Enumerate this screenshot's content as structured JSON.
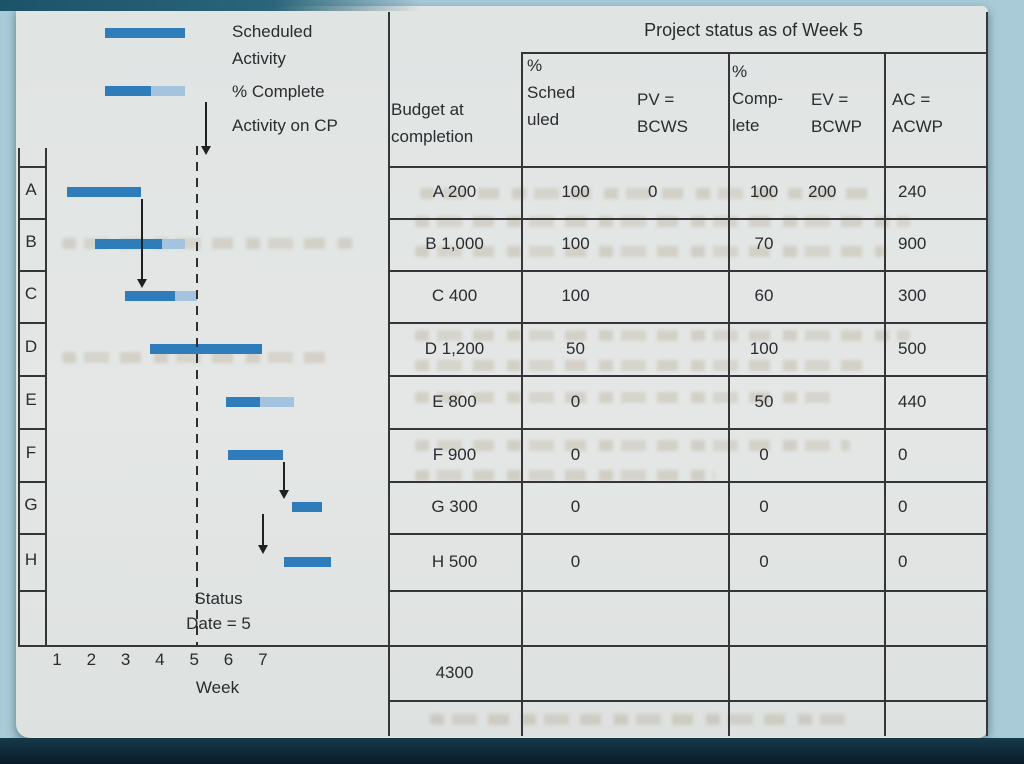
{
  "colors": {
    "bar_complete": "#2e7cb9",
    "bar_remaining": "#a3c3de",
    "grid_line": "#35353a",
    "text": "#2b2b30",
    "figure_bg": "#e2e5e3",
    "page_margin": "#a9cbd8",
    "page_edge_dark": "#1c5368"
  },
  "figure": {
    "legend": {
      "scheduled_label": "Scheduled\nActivity",
      "complete_label": "% Complete",
      "cp_label": "Activity on CP"
    },
    "status_date_label": "Status\nDate = 5",
    "axis": {
      "weeks": [
        "1",
        "2",
        "3",
        "4",
        "5",
        "6",
        "7"
      ],
      "xlabel": "Week"
    },
    "row_labels": [
      "A",
      "B",
      "C",
      "D",
      "E",
      "F",
      "G",
      "H"
    ]
  },
  "table": {
    "title": "Project status as of Week 5",
    "headers": {
      "budget": "Budget at\ncompletion",
      "scheduled": "%\nSched\nuled",
      "pv": "PV =\nBCWS",
      "complete": "%\nComp-\nlete",
      "ev": "EV =\nBCWP",
      "ac": "AC =\nACWP"
    },
    "rows": [
      {
        "id": "A",
        "budget": "A 200",
        "scheduled": "100",
        "pv": "0",
        "complete": "100",
        "ev": "200",
        "ac": "240"
      },
      {
        "id": "B",
        "budget": "B 1,000",
        "scheduled": "100",
        "pv": "",
        "complete": "70",
        "ev": "",
        "ac": "900"
      },
      {
        "id": "C",
        "budget": "C 400",
        "scheduled": "100",
        "pv": "",
        "complete": "60",
        "ev": "",
        "ac": "300"
      },
      {
        "id": "D",
        "budget": "D 1,200",
        "scheduled": "50",
        "pv": "",
        "complete": "100",
        "ev": "",
        "ac": "500"
      },
      {
        "id": "E",
        "budget": "E 800",
        "scheduled": "0",
        "pv": "",
        "complete": "50",
        "ev": "",
        "ac": "440"
      },
      {
        "id": "F",
        "budget": "F 900",
        "scheduled": "0",
        "pv": "",
        "complete": "0",
        "ev": "",
        "ac": "0"
      },
      {
        "id": "G",
        "budget": "G 300",
        "scheduled": "0",
        "pv": "",
        "complete": "0",
        "ev": "",
        "ac": "0"
      },
      {
        "id": "H",
        "budget": "H 500",
        "scheduled": "0",
        "pv": "",
        "complete": "0",
        "ev": "",
        "ac": "0"
      }
    ],
    "total_budget": "4300"
  },
  "chart_data": {
    "type": "gantt",
    "title": "Project status as of Week 5",
    "status_date_week": 5,
    "x_axis": {
      "label": "Week",
      "ticks": [
        1,
        2,
        3,
        4,
        5,
        6,
        7
      ]
    },
    "legend": [
      "Scheduled Activity",
      "% Complete",
      "Activity on CP"
    ],
    "activities": [
      {
        "id": "A",
        "budget_at_completion": 200,
        "pct_scheduled": 100,
        "pv_bcws": 0,
        "pct_complete": 100,
        "ev_bcwp": 200,
        "ac_acwp": 240,
        "bar_start_week": 1.3,
        "bar_end_week": 3.45,
        "bar_dark_fraction": 1
      },
      {
        "id": "B",
        "budget_at_completion": 1000,
        "pct_scheduled": 100,
        "pv_bcws": null,
        "pct_complete": 70,
        "ev_bcwp": null,
        "ac_acwp": 900,
        "bar_start_week": 2.1,
        "bar_end_week": 4.73,
        "bar_dark_fraction": 0.75
      },
      {
        "id": "C",
        "budget_at_completion": 400,
        "pct_scheduled": 100,
        "pv_bcws": null,
        "pct_complete": 60,
        "ev_bcwp": null,
        "ac_acwp": 300,
        "bar_start_week": 2.98,
        "bar_end_week": 5.08,
        "bar_dark_fraction": 0.7
      },
      {
        "id": "D",
        "budget_at_completion": 1200,
        "pct_scheduled": 50,
        "pv_bcws": null,
        "pct_complete": 100,
        "ev_bcwp": null,
        "ac_acwp": 500,
        "bar_start_week": 3.7,
        "bar_end_week": 6.98,
        "bar_dark_fraction": 1
      },
      {
        "id": "E",
        "budget_at_completion": 800,
        "pct_scheduled": 0,
        "pv_bcws": null,
        "pct_complete": 50,
        "ev_bcwp": null,
        "ac_acwp": 440,
        "bar_start_week": 5.93,
        "bar_end_week": 7.91,
        "bar_dark_fraction": 0.5
      },
      {
        "id": "F",
        "budget_at_completion": 900,
        "pct_scheduled": 0,
        "pv_bcws": null,
        "pct_complete": 0,
        "ev_bcwp": null,
        "ac_acwp": 0,
        "bar_start_week": 5.98,
        "bar_end_week": 7.59,
        "bar_dark_fraction": 1
      },
      {
        "id": "G",
        "budget_at_completion": 300,
        "pct_scheduled": 0,
        "pv_bcws": null,
        "pct_complete": 0,
        "ev_bcwp": null,
        "ac_acwp": 0,
        "bar_start_week": 7.85,
        "bar_end_week": 8.73,
        "bar_dark_fraction": 1
      },
      {
        "id": "H",
        "budget_at_completion": 500,
        "pct_scheduled": 0,
        "pv_bcws": null,
        "pct_complete": 0,
        "ev_bcwp": null,
        "ac_acwp": 0,
        "bar_start_week": 7.62,
        "bar_end_week": 8.99,
        "bar_dark_fraction": 1
      }
    ],
    "critical_path_arrows": [
      {
        "at_week": 3.45,
        "from": "A",
        "to": "C"
      },
      {
        "at_week": 7.59,
        "from": "F",
        "to": "G"
      },
      {
        "at_week": 6.98,
        "from": "G",
        "to": "H"
      }
    ],
    "total_budget": 4300
  }
}
